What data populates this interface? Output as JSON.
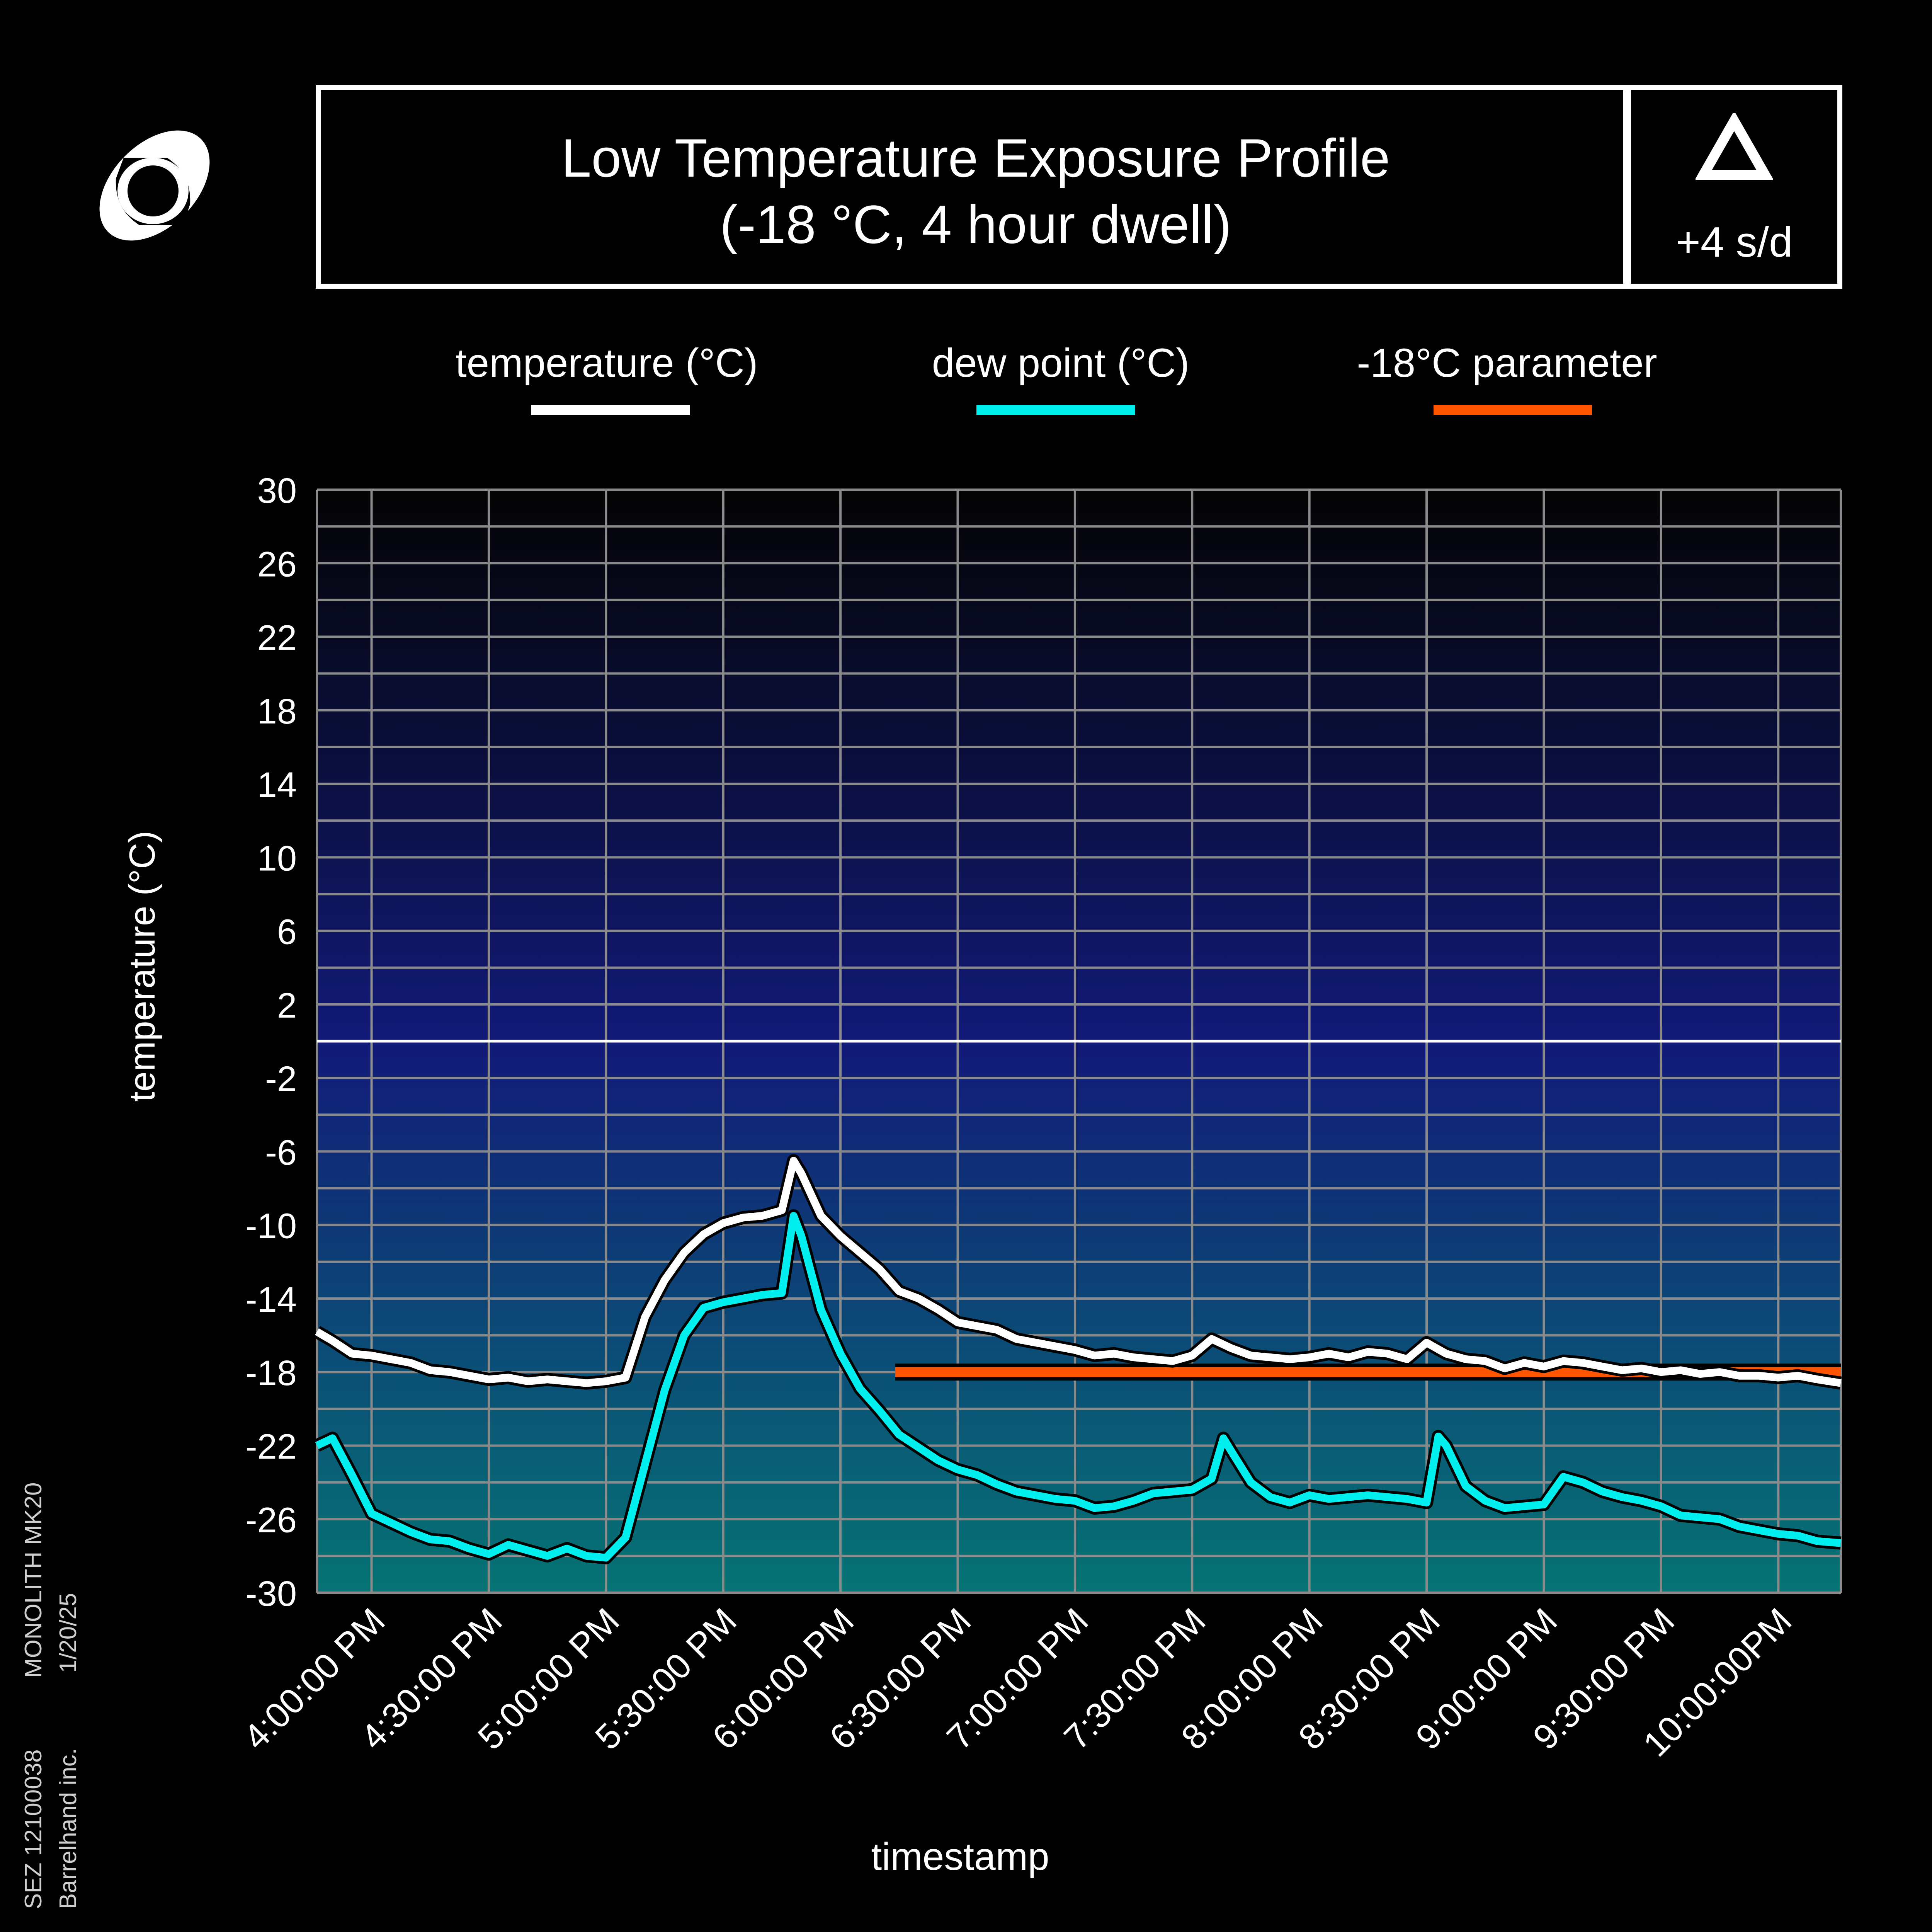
{
  "header": {
    "title_line1": "Low Temperature Exposure Profile",
    "title_line2": "(-18 °C, 4 hour dwell)",
    "badge_icon": "triangle-icon",
    "badge_value": "+4 s/d"
  },
  "logo": {
    "icon": "planet-ring-logo-icon"
  },
  "side_info": {
    "col1_line1": "SEZ 12100038",
    "col1_line2": "MONOLITH MK20",
    "col2_line1": "Barrelhand inc.",
    "col2_line2": "1/20/25"
  },
  "colors": {
    "temperature": "#ffffff",
    "dew_point": "#00f0f0",
    "parameter": "#ff5500",
    "gradient_top": "#040404",
    "gradient_mid": "#121a78",
    "gradient_bottom": "#067474"
  },
  "chart_data": {
    "type": "line",
    "xlabel": "timestamp",
    "ylabel": "temperature (°C)",
    "ylim": [
      -30,
      30
    ],
    "grid": true,
    "legend_placement": "top",
    "y_ticks": [
      "30",
      "26",
      "22",
      "18",
      "14",
      "10",
      "6",
      "2",
      "-2",
      "-6",
      "-10",
      "-14",
      "-18",
      "-22",
      "-26",
      "-30"
    ],
    "x_ticks": [
      "4:00:00 PM",
      "4:30:00 PM",
      "5:00:00 PM",
      "5:30:00 PM",
      "6:00:00 PM",
      "6:30:00 PM",
      "7:00:00 PM",
      "7:30:00 PM",
      "8:00:00 PM",
      "8:30:00 PM",
      "9:00:00 PM",
      "9:30:00 PM",
      "10:00:00PM"
    ],
    "x_range_minutes": [
      -14,
      376
    ],
    "zero_line": 0,
    "series": [
      {
        "name": "temperature (°C)",
        "x": [
          -14,
          -10,
          -5,
          0,
          5,
          10,
          15,
          20,
          25,
          30,
          35,
          40,
          45,
          50,
          55,
          60,
          65,
          70,
          75,
          80,
          85,
          90,
          95,
          100,
          105,
          108,
          110,
          115,
          120,
          125,
          130,
          135,
          140,
          145,
          150,
          155,
          160,
          165,
          170,
          175,
          180,
          185,
          190,
          195,
          200,
          205,
          210,
          215,
          220,
          225,
          230,
          235,
          240,
          245,
          250,
          255,
          260,
          265,
          270,
          275,
          280,
          285,
          290,
          295,
          300,
          305,
          310,
          315,
          320,
          325,
          330,
          335,
          340,
          345,
          350,
          355,
          360,
          365,
          370,
          376
        ],
        "values": [
          -15.8,
          -16.3,
          -17.0,
          -17.1,
          -17.3,
          -17.5,
          -17.9,
          -18.0,
          -18.2,
          -18.4,
          -18.3,
          -18.5,
          -18.4,
          -18.5,
          -18.6,
          -18.5,
          -18.3,
          -15.0,
          -13.0,
          -11.5,
          -10.5,
          -9.9,
          -9.6,
          -9.5,
          -9.2,
          -6.5,
          -7.2,
          -9.5,
          -10.6,
          -11.5,
          -12.4,
          -13.6,
          -14.0,
          -14.6,
          -15.3,
          -15.5,
          -15.7,
          -16.2,
          -16.4,
          -16.6,
          -16.8,
          -17.1,
          -17.0,
          -17.2,
          -17.3,
          -17.4,
          -17.1,
          -16.2,
          -16.7,
          -17.1,
          -17.2,
          -17.3,
          -17.2,
          -17.0,
          -17.2,
          -16.9,
          -17.0,
          -17.3,
          -16.4,
          -17.0,
          -17.3,
          -17.4,
          -17.8,
          -17.5,
          -17.7,
          -17.4,
          -17.5,
          -17.7,
          -17.9,
          -17.8,
          -18.0,
          -17.9,
          -18.1,
          -18.0,
          -18.2,
          -18.2,
          -18.3,
          -18.2,
          -18.4,
          -18.6
        ]
      },
      {
        "name": "dew point (°C)",
        "x": [
          -14,
          -10,
          -5,
          0,
          5,
          10,
          15,
          20,
          25,
          30,
          35,
          40,
          45,
          50,
          55,
          60,
          65,
          70,
          75,
          80,
          85,
          90,
          95,
          100,
          105,
          108,
          110,
          115,
          120,
          125,
          130,
          135,
          140,
          145,
          150,
          155,
          160,
          165,
          170,
          175,
          180,
          185,
          190,
          195,
          200,
          205,
          210,
          215,
          218,
          220,
          225,
          230,
          235,
          240,
          245,
          250,
          255,
          260,
          265,
          270,
          273,
          275,
          280,
          285,
          290,
          295,
          300,
          305,
          310,
          315,
          320,
          325,
          330,
          335,
          340,
          345,
          350,
          355,
          360,
          365,
          370,
          376
        ],
        "values": [
          -22.0,
          -21.6,
          -23.6,
          -25.7,
          -26.2,
          -26.7,
          -27.1,
          -27.2,
          -27.6,
          -27.9,
          -27.4,
          -27.7,
          -28.0,
          -27.6,
          -28.0,
          -28.1,
          -27.0,
          -23.0,
          -19.0,
          -16.0,
          -14.5,
          -14.2,
          -14.0,
          -13.8,
          -13.7,
          -9.5,
          -10.6,
          -14.6,
          -17.0,
          -18.9,
          -20.1,
          -21.4,
          -22.1,
          -22.8,
          -23.3,
          -23.6,
          -24.1,
          -24.5,
          -24.7,
          -24.9,
          -25.0,
          -25.4,
          -25.3,
          -25.0,
          -24.6,
          -24.5,
          -24.4,
          -23.8,
          -21.6,
          -22.3,
          -24.0,
          -24.8,
          -25.1,
          -24.7,
          -24.9,
          -24.8,
          -24.7,
          -24.8,
          -24.9,
          -25.1,
          -21.5,
          -22.0,
          -24.2,
          -25.0,
          -25.4,
          -25.3,
          -25.2,
          -23.7,
          -24.0,
          -24.5,
          -24.8,
          -25.0,
          -25.3,
          -25.8,
          -25.9,
          -26.0,
          -26.4,
          -26.6,
          -26.8,
          -26.9,
          -27.2,
          -27.3
        ]
      },
      {
        "name": "-18°C parameter",
        "x": [
          134,
          376
        ],
        "values": [
          -18.0,
          -18.0
        ]
      }
    ]
  }
}
